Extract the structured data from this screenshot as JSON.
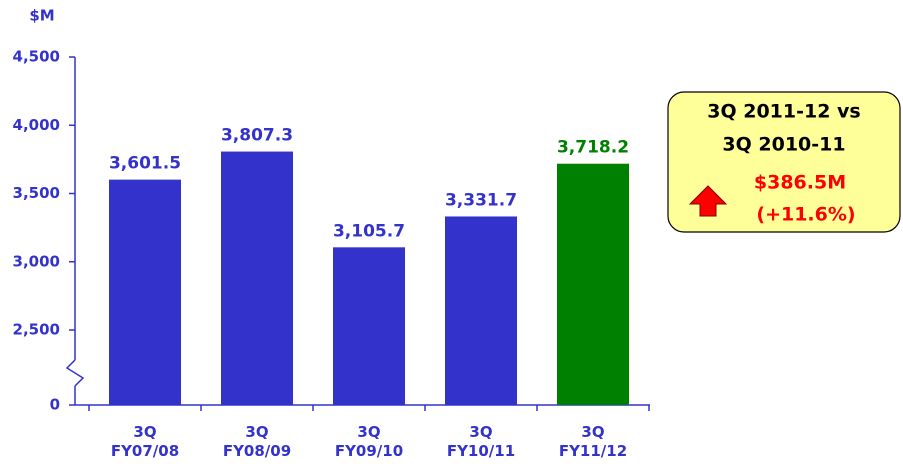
{
  "chart_data": {
    "type": "bar",
    "y_label": "$M",
    "categories": [
      "3Q FY07/08",
      "3Q FY08/09",
      "3Q FY09/10",
      "3Q FY10/11",
      "3Q FY11/12"
    ],
    "values": [
      3601.5,
      3807.3,
      3105.7,
      3331.7,
      3718.2
    ],
    "value_labels": [
      "3,601.5",
      "3,807.3",
      "3,105.7",
      "3,331.7",
      "3,718.2"
    ],
    "colors": [
      "#3333cc",
      "#3333cc",
      "#3333cc",
      "#3333cc",
      "#008000"
    ],
    "ylim": [
      0,
      4500
    ],
    "yticks": [
      0,
      {
        "value": 2500,
        "label": "2,500"
      },
      {
        "value": 3000,
        "label": "3,000"
      },
      {
        "value": 3500,
        "label": "3,500"
      },
      {
        "value": 4000,
        "label": "4,000"
      },
      {
        "value": 4500,
        "label": "4,500"
      }
    ],
    "axis_break": true,
    "annotation": {
      "lines": [
        "3Q 2011-12 vs",
        "3Q 2010-11"
      ],
      "change": "$386.5M",
      "change_pct": "(+11.6%)"
    }
  }
}
